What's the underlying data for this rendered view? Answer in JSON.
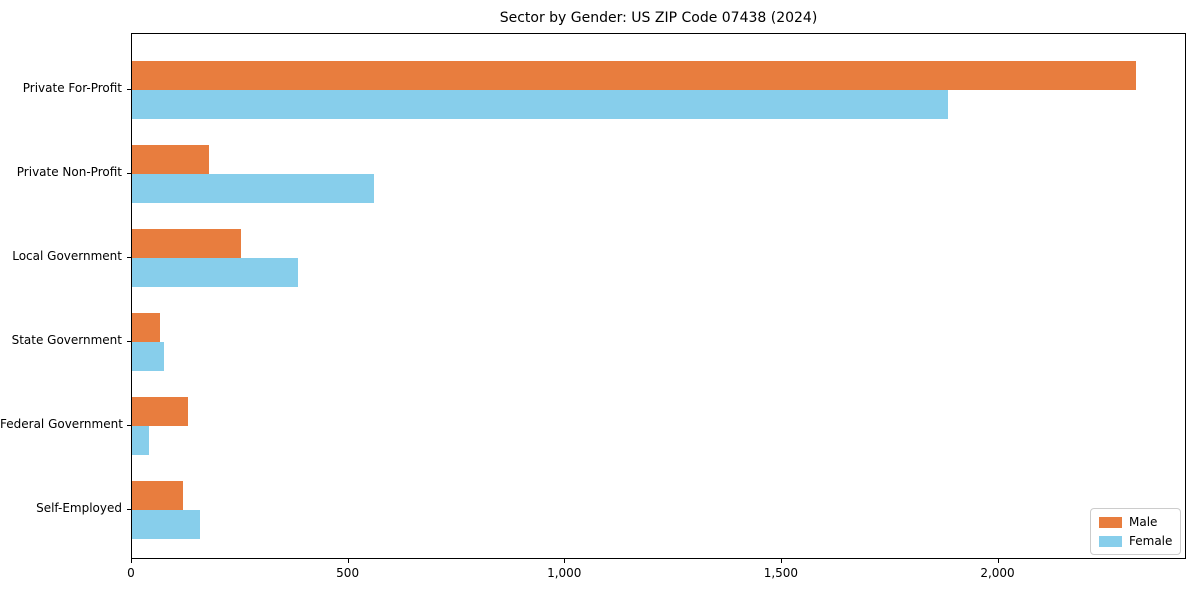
{
  "title": "Sector by Gender: US ZIP Code 07438 (2024)",
  "chart_data": {
    "type": "bar",
    "orientation": "horizontal",
    "title": "Sector by Gender: US ZIP Code 07438 (2024)",
    "xlabel": "",
    "ylabel": "",
    "categories": [
      "Private For-Profit",
      "Private Non-Profit",
      "Local Government",
      "State Government",
      "Federal Government",
      "Self-Employed"
    ],
    "series": [
      {
        "name": "Male",
        "color": "#e87d3e",
        "values": [
          2318,
          178,
          252,
          65,
          129,
          118
        ]
      },
      {
        "name": "Female",
        "color": "#87ceeb",
        "values": [
          1884,
          558,
          383,
          75,
          40,
          157
        ]
      }
    ],
    "xlim": [
      0,
      2435
    ],
    "xticks": [
      0,
      500,
      1000,
      1500,
      2000
    ],
    "xtick_labels": [
      "0",
      "500",
      "1,000",
      "1,500",
      "2,000"
    ],
    "grid": false,
    "legend_position": "lower right",
    "axis_color": "#000000"
  }
}
